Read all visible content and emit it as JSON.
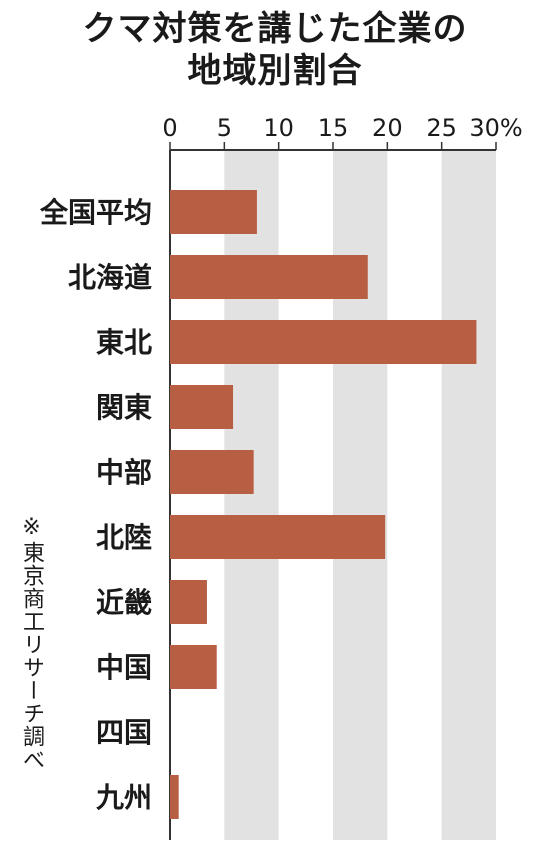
{
  "title_line1": "クマ対策を講じた企業の",
  "title_line2": "地域別割合",
  "source_note": "※東京商工リサーチ調べ",
  "colors": {
    "bar": "#b85f43",
    "band": "#e2e2e2",
    "axis": "#333333"
  },
  "chart_data": {
    "type": "bar",
    "orientation": "horizontal",
    "categories": [
      "全国平均",
      "北海道",
      "東北",
      "関東",
      "中部",
      "北陸",
      "近畿",
      "中国",
      "四国",
      "九州"
    ],
    "values": [
      8.0,
      18.2,
      28.2,
      5.8,
      7.7,
      19.8,
      3.4,
      4.3,
      0,
      0.8
    ],
    "xlim": [
      0,
      30
    ],
    "ticks": [
      0,
      5,
      10,
      15,
      20,
      25,
      30
    ],
    "tick_labels": [
      "0",
      "5",
      "10",
      "15",
      "20",
      "25",
      "30%"
    ],
    "grid": "alternating vertical bands",
    "title": "クマ対策を講じた企業の地域別割合",
    "xlabel": "",
    "ylabel": ""
  }
}
